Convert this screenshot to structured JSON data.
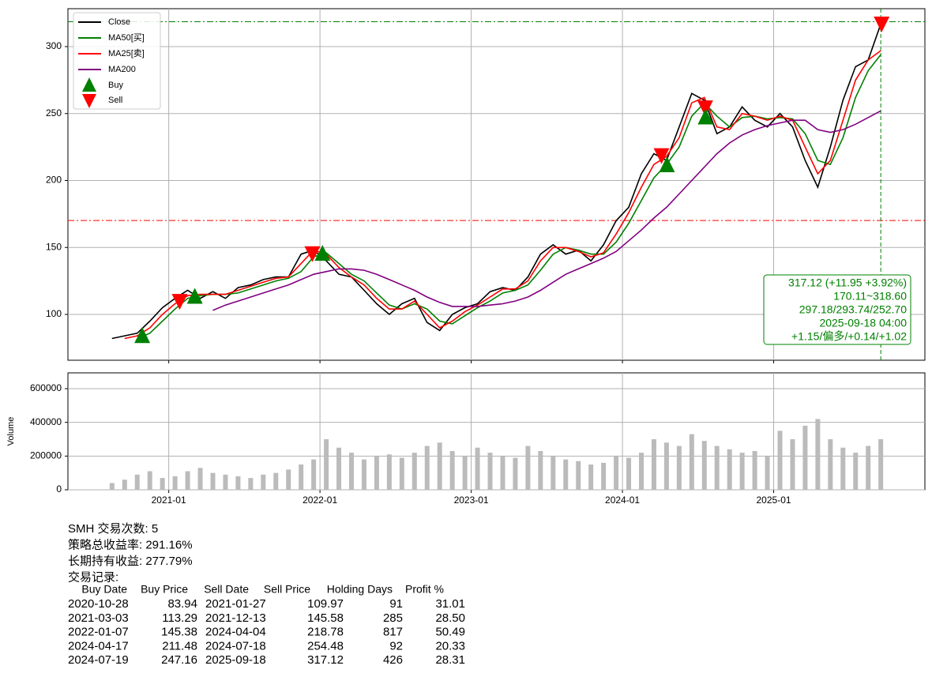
{
  "chart_data": {
    "type": "line",
    "x": [
      "2020-08",
      "2020-09",
      "2020-10",
      "2020-11",
      "2020-12",
      "2021-01",
      "2021-02",
      "2021-03",
      "2021-04",
      "2021-05",
      "2021-06",
      "2021-07",
      "2021-08",
      "2021-09",
      "2021-10",
      "2021-11",
      "2021-12",
      "2022-01",
      "2022-02",
      "2022-03",
      "2022-04",
      "2022-05",
      "2022-06",
      "2022-07",
      "2022-08",
      "2022-09",
      "2022-10",
      "2022-11",
      "2022-12",
      "2023-01",
      "2023-02",
      "2023-03",
      "2023-04",
      "2023-05",
      "2023-06",
      "2023-07",
      "2023-08",
      "2023-09",
      "2023-10",
      "2023-11",
      "2023-12",
      "2024-01",
      "2024-02",
      "2024-03",
      "2024-04",
      "2024-05",
      "2024-06",
      "2024-07",
      "2024-08",
      "2024-09",
      "2024-10",
      "2024-11",
      "2024-12",
      "2025-01",
      "2025-02",
      "2025-03",
      "2025-04",
      "2025-05",
      "2025-06",
      "2025-07",
      "2025-08",
      "2025-09"
    ],
    "xlim": [
      "2020-05",
      "2026-01"
    ],
    "xticks": [
      "2021-01",
      "2022-01",
      "2023-01",
      "2024-01",
      "2025-01"
    ],
    "ylim": [
      65.8,
      328.3
    ],
    "yticks": [
      100,
      150,
      200,
      250,
      300
    ],
    "grid": true,
    "legend": "upper left",
    "series": [
      {
        "name": "Close",
        "color": "#000000",
        "values": [
          82,
          84,
          86,
          95,
          105,
          112,
          118,
          112,
          117,
          112,
          120,
          122,
          126,
          128,
          128,
          145,
          148,
          140,
          130,
          128,
          118,
          108,
          100,
          108,
          112,
          94,
          88,
          100,
          105,
          108,
          117,
          120,
          118,
          128,
          145,
          152,
          145,
          148,
          140,
          152,
          170,
          180,
          205,
          220,
          215,
          240,
          265,
          260,
          235,
          240,
          255,
          245,
          240,
          250,
          240,
          215,
          195,
          225,
          260,
          285,
          290,
          317
        ]
      },
      {
        "name": "MA50[买]",
        "color": "#008000",
        "values": [
          null,
          null,
          82,
          86,
          95,
          104,
          112,
          114,
          115,
          115,
          116,
          119,
          122,
          125,
          127,
          132,
          143,
          146,
          138,
          130,
          125,
          116,
          107,
          104,
          108,
          104,
          95,
          93,
          99,
          105,
          110,
          116,
          118,
          122,
          133,
          145,
          150,
          148,
          145,
          145,
          154,
          168,
          185,
          202,
          212,
          225,
          248,
          258,
          248,
          240,
          247,
          248,
          246,
          247,
          246,
          235,
          215,
          212,
          232,
          262,
          282,
          294
        ]
      },
      {
        "name": "MA25[卖]",
        "color": "#ff0000",
        "values": [
          null,
          82,
          84,
          90,
          100,
          108,
          114,
          115,
          115,
          115,
          118,
          121,
          124,
          127,
          128,
          138,
          148,
          145,
          135,
          128,
          122,
          112,
          104,
          104,
          110,
          100,
          90,
          95,
          102,
          107,
          113,
          119,
          119,
          125,
          140,
          150,
          150,
          147,
          143,
          146,
          160,
          176,
          195,
          212,
          218,
          232,
          258,
          262,
          240,
          238,
          250,
          248,
          245,
          248,
          245,
          225,
          205,
          215,
          245,
          275,
          290,
          297
        ]
      },
      {
        "name": "MA200",
        "color": "#800080",
        "values": [
          null,
          null,
          null,
          null,
          null,
          null,
          null,
          null,
          103,
          107,
          110,
          113,
          116,
          119,
          122,
          126,
          130,
          132,
          134,
          134,
          133,
          130,
          126,
          122,
          118,
          113,
          109,
          106,
          106,
          106,
          107,
          108,
          110,
          113,
          118,
          124,
          130,
          134,
          138,
          142,
          147,
          155,
          163,
          172,
          180,
          190,
          200,
          210,
          220,
          228,
          234,
          238,
          241,
          243,
          245,
          245,
          238,
          236,
          238,
          242,
          247,
          252
        ]
      }
    ],
    "markers": [
      {
        "name": "Buy",
        "color": "#008000"
      },
      {
        "name": "Sell",
        "color": "#ff0000"
      }
    ],
    "hlines": [
      {
        "value": 318.6,
        "color": "#008000"
      },
      {
        "value": 170.11,
        "color": "#ff0000"
      }
    ],
    "annotation": [
      "317.12 (+11.95 +3.92%)",
      "170.11~318.60",
      "297.18/293.74/252.70",
      "2025-09-18 04:00",
      "+1.15/偏多/+0.14/+1.02"
    ],
    "volume": {
      "ylabel": "Volume",
      "color": "#bbbbbb",
      "ylim": [
        0,
        693750
      ],
      "yticks": [
        0,
        200000,
        400000,
        600000
      ],
      "values": [
        40000,
        60000,
        90000,
        110000,
        70000,
        80000,
        110000,
        130000,
        100000,
        90000,
        80000,
        70000,
        90000,
        100000,
        120000,
        150000,
        180000,
        300000,
        250000,
        220000,
        180000,
        200000,
        210000,
        190000,
        220000,
        260000,
        280000,
        230000,
        200000,
        250000,
        220000,
        200000,
        190000,
        260000,
        230000,
        200000,
        180000,
        170000,
        150000,
        160000,
        200000,
        190000,
        220000,
        300000,
        280000,
        260000,
        330000,
        290000,
        260000,
        240000,
        220000,
        230000,
        200000,
        350000,
        300000,
        380000,
        420000,
        300000,
        250000,
        220000,
        260000,
        300000
      ]
    }
  },
  "summary": {
    "lines": [
      "SMH 交易次数: 5",
      "策略总收益率: 291.16%",
      "长期持有收益: 277.79%",
      "交易记录:"
    ],
    "table": {
      "columns": [
        "Buy Date",
        "Buy Price",
        "Sell Date",
        "Sell Price",
        "Holding Days",
        "Profit %"
      ],
      "rows": [
        [
          "2020-10-28",
          "83.94",
          "2021-01-27",
          "109.97",
          "91",
          "31.01"
        ],
        [
          "2021-03-03",
          "113.29",
          "2021-12-13",
          "145.58",
          "285",
          "28.50"
        ],
        [
          "2022-01-07",
          "145.38",
          "2024-04-04",
          "218.78",
          "817",
          "50.49"
        ],
        [
          "2024-04-17",
          "211.48",
          "2024-07-18",
          "254.48",
          "92",
          "20.33"
        ],
        [
          "2024-07-19",
          "247.16",
          "2025-09-18",
          "317.12",
          "426",
          "28.31"
        ]
      ]
    }
  }
}
